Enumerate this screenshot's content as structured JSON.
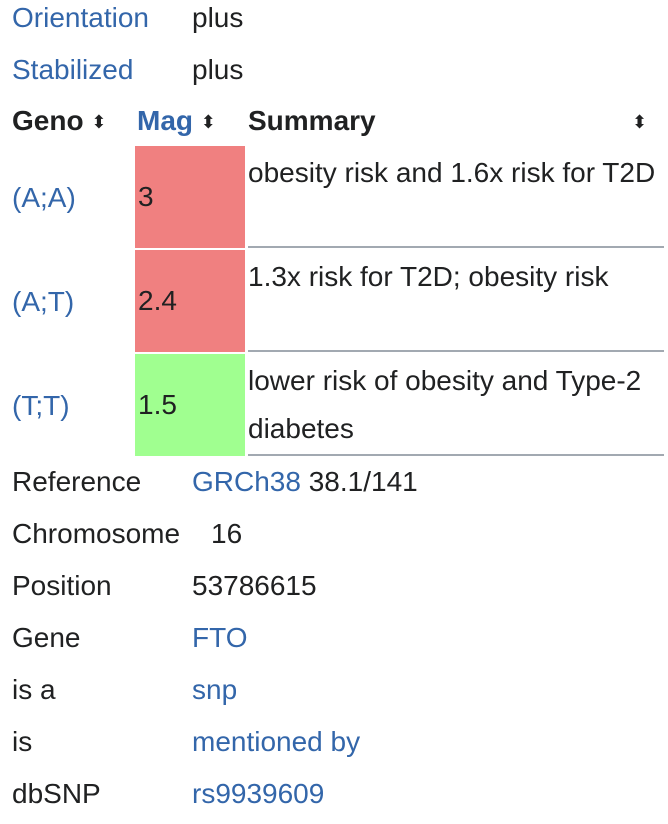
{
  "info_top": [
    {
      "label": "Orientation",
      "value": "plus"
    },
    {
      "label": "Stabilized",
      "value": "plus"
    }
  ],
  "table": {
    "headers": {
      "geno": "Geno",
      "mag": "Mag",
      "summary": "Summary",
      "sort_glyph": "⬍"
    },
    "rows": [
      {
        "geno": "(A;A)",
        "mag": "3",
        "summary": "obesity risk and 1.6x risk for T2D",
        "mag_color": "#f08080"
      },
      {
        "geno": "(A;T)",
        "mag": "2.4",
        "summary": "1.3x risk for T2D; obesity risk",
        "mag_color": "#f08080"
      },
      {
        "geno": "(T;T)",
        "mag": "1.5",
        "summary": "lower risk of obesity and Type-2 diabetes",
        "mag_color": "#a0ff90"
      }
    ]
  },
  "info_bottom": {
    "reference": {
      "label": "Reference",
      "link": "GRCh38",
      "suffix": "38.1/141"
    },
    "chromosome": {
      "label": "Chromosome",
      "value": "16"
    },
    "position": {
      "label": "Position",
      "value": "53786615"
    },
    "gene": {
      "label": "Gene",
      "link": "FTO"
    },
    "is_a": {
      "label": "is a",
      "link": "snp"
    },
    "is": {
      "label": "is",
      "link": "mentioned by"
    },
    "dbsnp": {
      "label": "dbSNP",
      "link": "rs9939609"
    }
  },
  "colors": {
    "link": "#3366aa",
    "text": "#202122",
    "mag_high": "#f08080",
    "mag_low": "#a0ff90",
    "row_divider": "#a2a9b1"
  }
}
